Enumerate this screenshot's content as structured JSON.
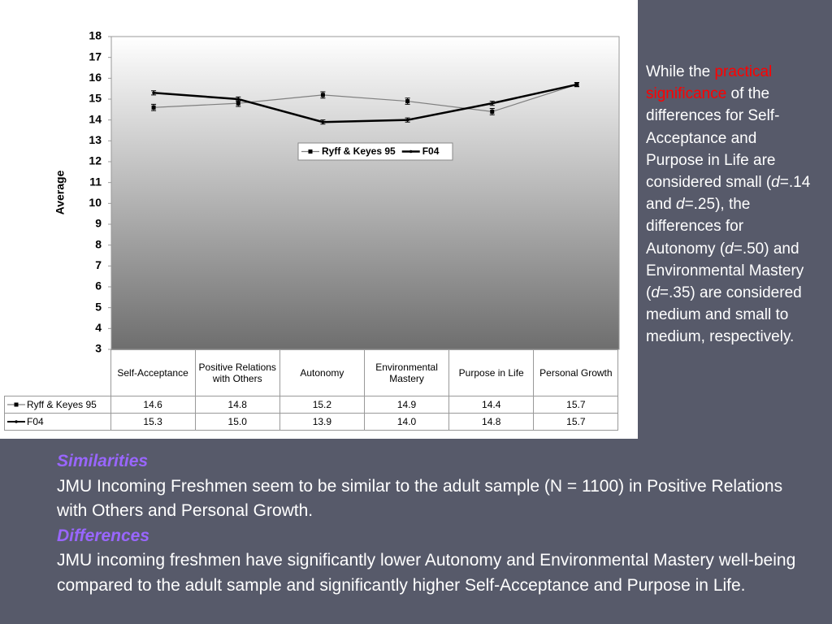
{
  "chart_data": {
    "type": "line",
    "y_label": "Average",
    "categories": [
      "Self-Acceptance",
      "Positive Relations with Others",
      "Autonomy",
      "Environmental Mastery",
      "Purpose in Life",
      "Personal Growth"
    ],
    "series": [
      {
        "name": "Ryff & Keyes 95",
        "color": "#808080",
        "values": [
          14.6,
          14.8,
          15.2,
          14.9,
          14.4,
          15.7
        ],
        "errors": [
          0.15,
          0.15,
          0.15,
          0.15,
          0.15,
          0.1
        ]
      },
      {
        "name": "F04",
        "color": "#000000",
        "values": [
          15.3,
          15.0,
          13.9,
          14.0,
          14.8,
          15.7
        ],
        "value_labels": [
          "15.3",
          "15.0",
          "13.9",
          "14.0",
          "14.8",
          "15.7"
        ],
        "errors": [
          0.1,
          0.1,
          0.1,
          0.1,
          0.1,
          0.1
        ]
      }
    ],
    "ylim": [
      3,
      18
    ],
    "yticks": [
      3,
      4,
      5,
      6,
      7,
      8,
      9,
      10,
      11,
      12,
      13,
      14,
      15,
      16,
      17,
      18
    ]
  },
  "sidebar": {
    "parts": [
      "While the ",
      "practical significance",
      " of the differences for Self-Acceptance and Purpose in Life are considered small (",
      "d",
      "=.14 and ",
      "d",
      "=.25), the differences for Autonomy (",
      "d",
      "=.50) and Environmental Mastery (",
      "d",
      "=.35) are considered medium and small to medium, respectively."
    ]
  },
  "notes": [
    {
      "heading": "Similarities",
      "text": "JMU Incoming Freshmen seem to be similar to the adult sample (N = 1100) in Positive Relations with Others and Personal Growth."
    },
    {
      "heading": "Differences",
      "text": "JMU incoming freshmen have significantly lower Autonomy and Environmental Mastery well-being compared to the adult sample and significantly higher Self-Acceptance and Purpose in Life."
    }
  ]
}
